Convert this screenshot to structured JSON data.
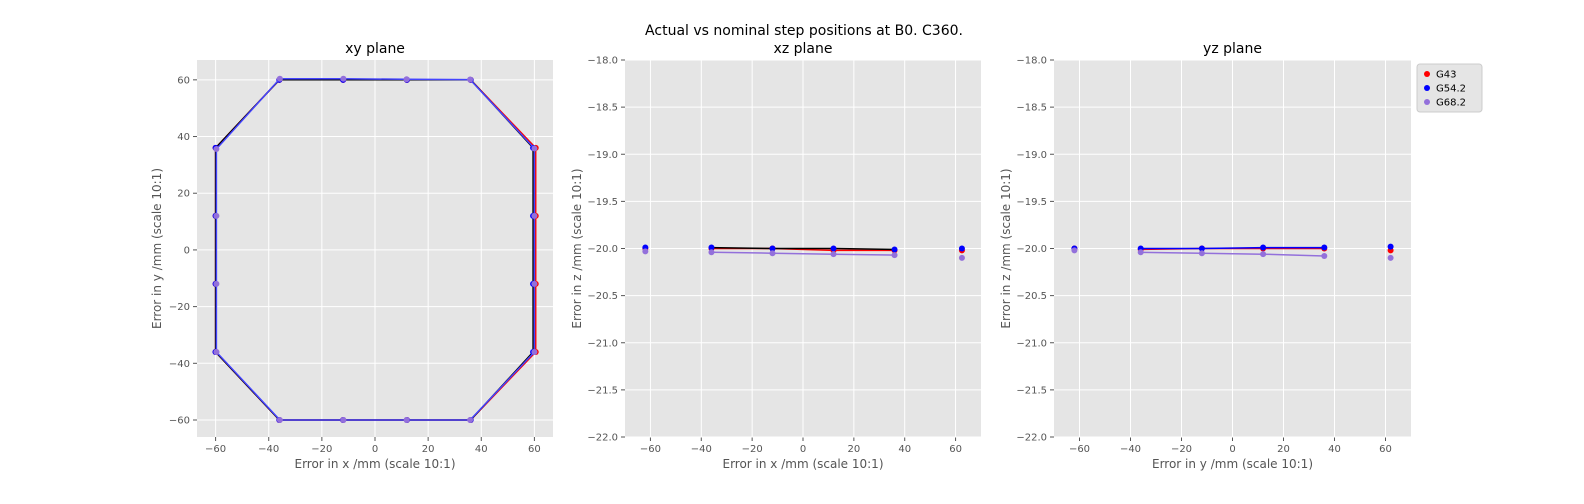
{
  "suptitle": "Actual vs nominal step positions at B0. C360.",
  "chart_data": [
    {
      "type": "line",
      "title": "xy plane",
      "xlabel": "Error in x /mm (scale 10:1)",
      "ylabel": "Error in y /mm (scale 10:1)",
      "xlim": [
        -67,
        67
      ],
      "ylim": [
        -66,
        67
      ],
      "xticks": [
        -60,
        -40,
        -20,
        0,
        20,
        40,
        60
      ],
      "yticks": [
        -60,
        -40,
        -20,
        0,
        20,
        40,
        60
      ],
      "xtick_labels": [
        "−60",
        "−40",
        "−20",
        "0",
        "20",
        "40",
        "60"
      ],
      "ytick_labels": [
        "−60",
        "−40",
        "−20",
        "0",
        "20",
        "40",
        "60"
      ],
      "grid": true,
      "series": [
        {
          "name": "G43",
          "color": "#ff0000",
          "line_color": "#ff0000",
          "x": [
            -60,
            -60,
            -60,
            -60,
            -36,
            -12,
            12,
            36,
            60.5,
            60.5,
            60.5,
            60.5,
            36,
            12,
            -12,
            -36,
            -60
          ],
          "y": [
            -36,
            -12,
            12,
            36,
            60,
            60,
            60,
            60,
            36,
            12,
            -12,
            -36,
            -60,
            -60,
            -60,
            -60,
            -36
          ]
        },
        {
          "name": "G54.2",
          "color": "#0000ff",
          "line_color": "#000000",
          "x": [
            -60,
            -60,
            -60,
            -60,
            -36,
            -12,
            12,
            36,
            59.5,
            59.5,
            59.5,
            59.5,
            36,
            12,
            -12,
            -36,
            -60
          ],
          "y": [
            -36,
            -12,
            12,
            36,
            60,
            60,
            60,
            60,
            36,
            12,
            -12,
            -36,
            -60,
            -60,
            -60,
            -60,
            -36
          ]
        },
        {
          "name": "G68.2",
          "color": "#9370db",
          "line_color": "#4444ff",
          "x": [
            -59.7,
            -59.7,
            -59.7,
            -59.7,
            -35.8,
            -11.9,
            11.9,
            35.8,
            60,
            60,
            60,
            60,
            35.8,
            11.9,
            -11.9,
            -35.8,
            -59.7
          ],
          "y": [
            -36,
            -12,
            12,
            35.6,
            60.4,
            60.4,
            60.2,
            60.1,
            35.8,
            12,
            -12,
            -36,
            -60,
            -60,
            -60,
            -60,
            -36
          ]
        }
      ]
    },
    {
      "type": "line",
      "title": "xz plane",
      "xlabel": "Error in x /mm (scale 10:1)",
      "ylabel": "Error in z /mm (scale 10:1)",
      "xlim": [
        -70,
        70
      ],
      "ylim": [
        -22,
        -18
      ],
      "xticks": [
        -60,
        -40,
        -20,
        0,
        20,
        40,
        60
      ],
      "yticks": [
        -22,
        -21.5,
        -21,
        -20.5,
        -20,
        -19.5,
        -19,
        -18.5,
        -18
      ],
      "xtick_labels": [
        "−60",
        "−40",
        "−20",
        "0",
        "20",
        "40",
        "60"
      ],
      "ytick_labels": [
        "−22.0",
        "−21.5",
        "−21.0",
        "−20.5",
        "−20.0",
        "−19.5",
        "−19.0",
        "−18.5",
        "−18.0"
      ],
      "grid": true,
      "series": [
        {
          "name": "G43",
          "color": "#ff0000",
          "line_color": "#ff0000",
          "x": [
            -36,
            -12,
            12,
            36
          ],
          "y": [
            -20.0,
            -20.0,
            -20.02,
            -20.02
          ],
          "extra_x": [
            -62,
            62.5
          ],
          "extra_y": [
            -20.0,
            -20.02
          ]
        },
        {
          "name": "G54.2",
          "color": "#0000ff",
          "line_color": "#000000",
          "x": [
            -36,
            -12,
            12,
            36
          ],
          "y": [
            -19.99,
            -20.0,
            -20.0,
            -20.01
          ],
          "extra_x": [
            -62,
            62.5
          ],
          "extra_y": [
            -19.99,
            -20.0
          ]
        },
        {
          "name": "G68.2",
          "color": "#9370db",
          "line_color": "#9370db",
          "x": [
            -36,
            -12,
            12,
            36
          ],
          "y": [
            -20.04,
            -20.05,
            -20.06,
            -20.07
          ],
          "extra_x": [
            -62,
            62.5
          ],
          "extra_y": [
            -20.03,
            -20.1
          ]
        }
      ]
    },
    {
      "type": "line",
      "title": "yz plane",
      "xlabel": "Error in y /mm (scale 10:1)",
      "ylabel": "Error in z /mm (scale 10:1)",
      "xlim": [
        -70,
        70
      ],
      "ylim": [
        -22,
        -18
      ],
      "xticks": [
        -60,
        -40,
        -20,
        0,
        20,
        40,
        60
      ],
      "yticks": [
        -22,
        -21.5,
        -21,
        -20.5,
        -20,
        -19.5,
        -19,
        -18.5,
        -18
      ],
      "xtick_labels": [
        "−60",
        "−40",
        "−20",
        "0",
        "20",
        "40",
        "60"
      ],
      "ytick_labels": [
        "−22.0",
        "−21.5",
        "−21.0",
        "−20.5",
        "−20.0",
        "−19.5",
        "−19.0",
        "−18.5",
        "−18.0"
      ],
      "grid": true,
      "legend": "upper-right-outside",
      "series": [
        {
          "name": "G43",
          "color": "#ff0000",
          "line_color": "#ff0000",
          "x": [
            -36,
            -12,
            12,
            36
          ],
          "y": [
            -20.01,
            -20.0,
            -20.0,
            -20.0
          ],
          "extra_x": [
            -62,
            62
          ],
          "extra_y": [
            -20.0,
            -20.02
          ]
        },
        {
          "name": "G54.2",
          "color": "#0000ff",
          "line_color": "#0000ff",
          "x": [
            -36,
            -12,
            12,
            36
          ],
          "y": [
            -20.0,
            -20.0,
            -19.99,
            -19.99
          ],
          "extra_x": [
            -62,
            62
          ],
          "extra_y": [
            -20.0,
            -19.98
          ]
        },
        {
          "name": "G68.2",
          "color": "#9370db",
          "line_color": "#9370db",
          "x": [
            -36,
            -12,
            12,
            36
          ],
          "y": [
            -20.04,
            -20.05,
            -20.06,
            -20.08
          ],
          "extra_x": [
            -62,
            62
          ],
          "extra_y": [
            -20.02,
            -20.1
          ]
        }
      ]
    }
  ]
}
